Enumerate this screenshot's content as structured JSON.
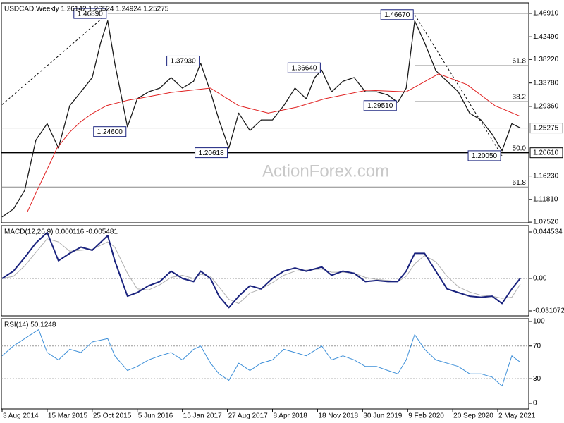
{
  "chart_data": [
    {
      "type": "line",
      "title": "USDCAD,Weekly  1.26142 1.26524 1.24924 1.25275",
      "watermark": "ActionForex.com",
      "ylim": [
        1.074,
        1.489
      ],
      "yticks": [
        {
          "value": 1.4691,
          "label": "1.46910"
        },
        {
          "value": 1.4249,
          "label": "1.42490"
        },
        {
          "value": 1.3822,
          "label": "1.38220"
        },
        {
          "value": 1.3378,
          "label": "1.33780"
        },
        {
          "value": 1.2936,
          "label": "1.29360"
        },
        {
          "value": 1.1623,
          "label": "1.16230"
        },
        {
          "value": 1.1181,
          "label": "1.11810"
        },
        {
          "value": 1.0752,
          "label": "1.07520"
        }
      ],
      "last_price": 1.25275,
      "support": {
        "value": 1.2061,
        "label": "1.20610"
      },
      "levels": [
        {
          "value": 1.4691,
          "from": 75
        }
      ],
      "fib_levels": [
        {
          "label": "61.8",
          "value": 1.3706,
          "from": 293
        },
        {
          "label": "38.2",
          "value": 1.3027,
          "from": 293
        },
        {
          "label": "50.0",
          "value": 1.2061,
          "from": 0
        },
        {
          "label": "61.8",
          "value": 1.1415,
          "from": 0
        }
      ],
      "trendlines": [
        {
          "x": [
            0,
            75
          ],
          "y": [
            1.297,
            1.4689
          ]
        },
        {
          "x": [
            293,
            355
          ],
          "y": [
            1.4667,
            1.2005
          ]
        }
      ],
      "annotations": [
        {
          "label": "1.46890",
          "value": 1.4689,
          "x": 75
        },
        {
          "label": "1.37930",
          "value": 1.3793,
          "x": 141
        },
        {
          "label": "1.36640",
          "value": 1.3664,
          "x": 227
        },
        {
          "label": "1.46670",
          "value": 1.4667,
          "x": 293
        },
        {
          "label": "1.24600",
          "value": 1.246,
          "x": 89
        },
        {
          "label": "1.20618",
          "value": 1.2062,
          "x": 161
        },
        {
          "label": "1.29510",
          "value": 1.2951,
          "x": 281
        },
        {
          "label": "1.20050",
          "value": 1.2005,
          "x": 355
        }
      ],
      "series": [
        {
          "color": "#1a1a1a",
          "width": 1.3,
          "x": [
            0,
            8,
            16,
            24,
            32,
            40,
            48,
            56,
            64,
            70,
            75,
            80,
            89,
            96,
            104,
            112,
            120,
            128,
            136,
            141,
            148,
            154,
            161,
            168,
            176,
            184,
            192,
            200,
            208,
            216,
            222,
            227,
            234,
            242,
            250,
            258,
            266,
            274,
            281,
            287,
            293,
            300,
            308,
            316,
            324,
            332,
            340,
            348,
            355,
            362,
            368
          ],
          "values": [
            1.085,
            1.1,
            1.135,
            1.23,
            1.261,
            1.215,
            1.295,
            1.321,
            1.348,
            1.414,
            1.455,
            1.375,
            1.255,
            1.308,
            1.321,
            1.328,
            1.348,
            1.328,
            1.341,
            1.375,
            1.321,
            1.268,
            1.215,
            1.281,
            1.248,
            1.268,
            1.268,
            1.295,
            1.328,
            1.308,
            1.348,
            1.362,
            1.321,
            1.341,
            1.348,
            1.321,
            1.321,
            1.315,
            1.301,
            1.328,
            1.455,
            1.414,
            1.361,
            1.341,
            1.321,
            1.281,
            1.268,
            1.241,
            1.21,
            1.261,
            1.253
          ]
        },
        {
          "color": "#e02020",
          "width": 1,
          "x": [
            18,
            24,
            32,
            39,
            48,
            56,
            64,
            74,
            89,
            100,
            120,
            148,
            168,
            189,
            209,
            229,
            259,
            287,
            310,
            330,
            350,
            368
          ],
          "values": [
            1.095,
            1.13,
            1.175,
            1.215,
            1.245,
            1.265,
            1.28,
            1.295,
            1.305,
            1.31,
            1.32,
            1.328,
            1.295,
            1.281,
            1.292,
            1.308,
            1.324,
            1.321,
            1.355,
            1.335,
            1.295,
            1.275
          ]
        }
      ]
    },
    {
      "type": "line",
      "title": "MACD(12,26,9) 0.000116 -0.005481",
      "ylim": [
        -0.0358,
        0.0506
      ],
      "yticks": [
        0.044534,
        {
          "value": 0,
          "label": "0.00"
        },
        -0.031072
      ],
      "levels": [
        0
      ],
      "series": [
        {
          "color": "#b0b0b0",
          "width": 1,
          "x": [
            0,
            8,
            16,
            24,
            32,
            40,
            48,
            56,
            64,
            75,
            80,
            89,
            96,
            104,
            112,
            120,
            128,
            136,
            141,
            148,
            154,
            161,
            168,
            176,
            184,
            192,
            200,
            208,
            216,
            227,
            234,
            242,
            250,
            258,
            266,
            274,
            281,
            287,
            293,
            300,
            308,
            316,
            324,
            332,
            340,
            348,
            355,
            362,
            368
          ],
          "values": [
            0,
            0.002,
            0.012,
            0.025,
            0.038,
            0.035,
            0.026,
            0.027,
            0.028,
            0.035,
            0.03,
            0.005,
            -0.01,
            -0.011,
            -0.006,
            0.001,
            0.003,
            0.0,
            0.004,
            0.002,
            -0.008,
            -0.02,
            -0.024,
            -0.014,
            -0.01,
            -0.004,
            0.003,
            0.007,
            0.008,
            0.009,
            0.006,
            0.006,
            0.005,
            0.001,
            -0.001,
            -0.002,
            -0.003,
            0.002,
            0.014,
            0.022,
            0.016,
            0.002,
            -0.008,
            -0.013,
            -0.016,
            -0.017,
            -0.019,
            -0.018,
            -0.005481
          ]
        },
        {
          "color": "#1a237e",
          "width": 2,
          "x": [
            0,
            8,
            16,
            24,
            32,
            40,
            48,
            56,
            64,
            75,
            80,
            89,
            96,
            104,
            112,
            120,
            128,
            136,
            141,
            148,
            154,
            161,
            168,
            176,
            184,
            192,
            200,
            208,
            216,
            227,
            234,
            242,
            250,
            258,
            266,
            274,
            281,
            287,
            293,
            300,
            308,
            316,
            324,
            332,
            340,
            348,
            355,
            362,
            368
          ],
          "values": [
            0,
            0.007,
            0.02,
            0.034,
            0.044,
            0.017,
            0.024,
            0.03,
            0.027,
            0.041,
            0.017,
            -0.017,
            -0.0135,
            -0.007,
            -0.003,
            0.007,
            0,
            -0.003,
            0.007,
            0,
            -0.017,
            -0.028,
            -0.017,
            -0.007,
            -0.01,
            0,
            0.007,
            0.01,
            0.007,
            0.011,
            0.003,
            0.007,
            0.005,
            -0.003,
            -0.002,
            -0.003,
            -0.003,
            0.007,
            0.024,
            0.024,
            0.007,
            -0.01,
            -0.0135,
            -0.017,
            -0.018,
            -0.017,
            -0.024,
            -0.01,
            0.000116
          ]
        }
      ]
    },
    {
      "type": "line",
      "title": "RSI(14) 50.1248",
      "ylim": [
        -6.9,
        103.4
      ],
      "yticks": [
        100,
        70,
        30,
        0
      ],
      "levels": [
        70,
        30
      ],
      "xlim": [
        -0.5,
        374
      ],
      "xticks": [
        {
          "value": 0,
          "label": "3 Aug 2014"
        },
        {
          "value": 32,
          "label": "15 Mar 2015"
        },
        {
          "value": 64,
          "label": "25 Oct 2015"
        },
        {
          "value": 96,
          "label": "5 Jun 2016"
        },
        {
          "value": 128,
          "label": "15 Jan 2017"
        },
        {
          "value": 160,
          "label": "27 Aug 2017"
        },
        {
          "value": 192,
          "label": "8 Apr 2018"
        },
        {
          "value": 224,
          "label": "18 Nov 2018"
        },
        {
          "value": 256,
          "label": "30 Jun 2019"
        },
        {
          "value": 288,
          "label": "9 Feb 2020"
        },
        {
          "value": 320,
          "label": "20 Sep 2020"
        },
        {
          "value": 352,
          "label": "2 May 2021"
        }
      ],
      "series": [
        {
          "color": "#3d8fd8",
          "width": 1,
          "x": [
            0,
            8,
            16,
            24,
            26,
            32,
            40,
            48,
            56,
            64,
            75,
            80,
            89,
            96,
            104,
            112,
            120,
            128,
            136,
            141,
            148,
            154,
            161,
            168,
            176,
            184,
            192,
            200,
            208,
            216,
            227,
            234,
            242,
            250,
            258,
            266,
            274,
            281,
            287,
            293,
            300,
            308,
            316,
            324,
            332,
            340,
            348,
            355,
            362,
            368
          ],
          "values": [
            58,
            70,
            79,
            88,
            90,
            62,
            53,
            66,
            62,
            75,
            79,
            58,
            40,
            45,
            53,
            58,
            62,
            53,
            66,
            70,
            49,
            36,
            28,
            49,
            40,
            49,
            53,
            66,
            62,
            58,
            70,
            53,
            58,
            53,
            45,
            45,
            40,
            36,
            53,
            84,
            66,
            53,
            49,
            45,
            36,
            36,
            32,
            21,
            58,
            50.1248
          ]
        }
      ]
    }
  ]
}
